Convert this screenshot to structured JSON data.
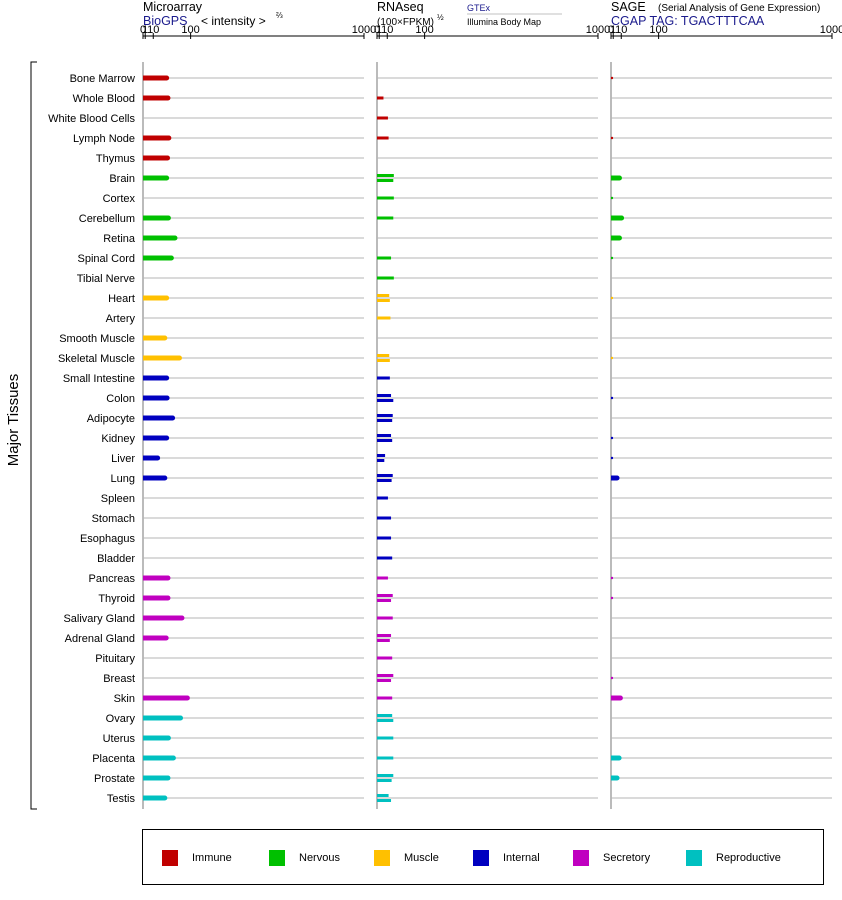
{
  "panels": [
    {
      "id": "microarray",
      "title_main": "Microarray",
      "title_note": "< intensity >",
      "title_exp": "⅔",
      "subtitle": "BioGPS",
      "axis_ticks": [
        "0",
        "1",
        "10",
        "100",
        "1000"
      ],
      "tick_values": [
        0,
        1,
        10,
        100,
        1000
      ]
    },
    {
      "id": "rnaseq",
      "title_main": "RNAseq",
      "unit_label": "(100×FPKM)",
      "unit_exp": "½",
      "source_top": "GTEx",
      "source_bottom": "Illumina Body Map",
      "axis_ticks": [
        "0",
        "1",
        "10",
        "100",
        "1000"
      ],
      "tick_values": [
        0,
        1,
        10,
        100,
        1000
      ]
    },
    {
      "id": "sage",
      "title_main": "SAGE",
      "title_note": "(Serial Analysis of Gene Expression)",
      "subtitle": "CGAP  TAG: TGACTTTCAA",
      "axis_ticks": [
        "0",
        "1",
        "10",
        "100",
        "1000"
      ],
      "tick_values": [
        0,
        1,
        10,
        100,
        1000
      ]
    }
  ],
  "y_axis_label": "Major Tissues",
  "legend": [
    {
      "label": "Immune",
      "color": "#c00000"
    },
    {
      "label": "Nervous",
      "color": "#00c000"
    },
    {
      "label": "Muscle",
      "color": "#ffc000"
    },
    {
      "label": "Internal",
      "color": "#0000c0"
    },
    {
      "label": "Secretory",
      "color": "#c000c0"
    },
    {
      "label": "Reproductive",
      "color": "#00c0c0"
    }
  ],
  "chart_data": {
    "type": "bar",
    "orientation": "horizontal",
    "x_scale": "two-thirds power (value^(2/3))",
    "xlim": [
      0,
      1000
    ],
    "grid": true,
    "legend_position": "bottom",
    "categories": [
      "Bone Marrow",
      "Whole Blood",
      "White Blood Cells",
      "Lymph Node",
      "Thymus",
      "Brain",
      "Cortex",
      "Cerebellum",
      "Retina",
      "Spinal Cord",
      "Tibial Nerve",
      "Heart",
      "Artery",
      "Smooth Muscle",
      "Skeletal Muscle",
      "Small Intestine",
      "Colon",
      "Adipocyte",
      "Kidney",
      "Liver",
      "Lung",
      "Spleen",
      "Stomach",
      "Esophagus",
      "Bladder",
      "Pancreas",
      "Thyroid",
      "Salivary Gland",
      "Adrenal Gland",
      "Pituitary",
      "Breast",
      "Skin",
      "Ovary",
      "Uterus",
      "Placenta",
      "Prostate",
      "Testis"
    ],
    "groups": [
      "Immune",
      "Immune",
      "Immune",
      "Immune",
      "Immune",
      "Nervous",
      "Nervous",
      "Nervous",
      "Nervous",
      "Nervous",
      "Nervous",
      "Muscle",
      "Muscle",
      "Muscle",
      "Muscle",
      "Internal",
      "Internal",
      "Internal",
      "Internal",
      "Internal",
      "Internal",
      "Internal",
      "Internal",
      "Internal",
      "Internal",
      "Secretory",
      "Secretory",
      "Secretory",
      "Secretory",
      "Secretory",
      "Secretory",
      "Secretory",
      "Reproductive",
      "Reproductive",
      "Reproductive",
      "Reproductive",
      "Reproductive"
    ],
    "series": [
      {
        "name": "Microarray",
        "values": [
          35,
          38,
          null,
          40,
          37,
          35,
          null,
          39,
          55,
          46,
          null,
          35,
          null,
          31,
          67,
          35,
          36,
          49,
          35,
          17,
          31,
          null,
          null,
          null,
          null,
          38,
          38,
          74,
          34,
          null,
          null,
          90,
          70,
          39,
          51,
          38,
          31
        ]
      },
      {
        "name": "GTEx",
        "values": [
          null,
          5,
          11,
          12,
          null,
          21,
          21,
          20,
          null,
          16,
          21,
          13,
          15,
          null,
          13,
          14,
          16,
          19,
          16,
          7,
          19,
          11,
          16,
          16,
          18,
          11,
          19,
          null,
          16,
          18,
          20,
          18,
          18,
          20,
          20,
          20,
          12
        ]
      },
      {
        "name": "Illumina Body Map",
        "values": [
          null,
          null,
          null,
          null,
          null,
          20,
          null,
          null,
          null,
          null,
          null,
          14,
          null,
          null,
          14,
          null,
          20,
          18,
          18,
          6,
          17,
          null,
          null,
          null,
          null,
          null,
          16,
          19,
          14,
          null,
          16,
          null,
          20,
          null,
          null,
          17,
          16
        ]
      },
      {
        "name": "SAGE",
        "values": [
          0.1,
          null,
          null,
          0.1,
          null,
          7.5,
          0.05,
          10.5,
          7.5,
          0.05,
          null,
          0.02,
          null,
          null,
          0.02,
          null,
          0.1,
          null,
          0.1,
          0.1,
          4.5,
          null,
          null,
          null,
          null,
          0.1,
          0.1,
          null,
          null,
          null,
          0.1,
          8.8,
          null,
          null,
          7.0,
          4.5,
          null
        ]
      }
    ]
  }
}
